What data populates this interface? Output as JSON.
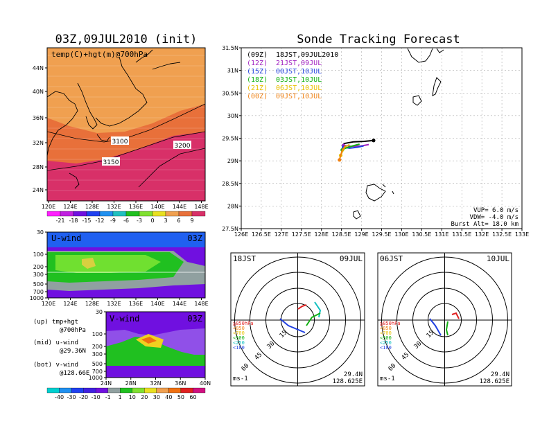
{
  "left_title": "03Z,09JUL2010 (init)",
  "right_title": "Sonde Tracking Forecast",
  "map_panel": {
    "label": "temp(C)+hgt(m)@700hPa",
    "lat_ticks": [
      "44N",
      "40N",
      "36N",
      "32N",
      "28N",
      "24N"
    ],
    "lon_ticks": [
      "120E",
      "124E",
      "128E",
      "132E",
      "136E",
      "140E",
      "144E",
      "148E"
    ],
    "contours": [
      "3100",
      "3150",
      "3200"
    ],
    "colors": {
      "warm": "#f0a050",
      "mid": "#e8703a",
      "hot": "#d83068"
    }
  },
  "temp_colorbar": {
    "labels": [
      "-21",
      "-18",
      "-15",
      "-12",
      "-9",
      "-6",
      "-3",
      "0",
      "3",
      "6",
      "9"
    ]
  },
  "uwind_panel": {
    "label": "U-wind",
    "time": "03Z",
    "p_ticks": [
      "30",
      "100",
      "200",
      "300",
      "500",
      "700",
      "1000"
    ],
    "lon_ticks": [
      "120E",
      "124E",
      "128E",
      "132E",
      "136E",
      "140E",
      "144E",
      "148E"
    ]
  },
  "vwind_panel": {
    "label": "V-wind",
    "time": "03Z",
    "p_ticks": [
      "30",
      "100",
      "200",
      "300",
      "500",
      "700",
      "1000"
    ],
    "lat_ticks": [
      "24N",
      "28N",
      "32N",
      "36N",
      "40N"
    ]
  },
  "wind_colorbar": {
    "labels": [
      "-40",
      "-30",
      "-20",
      "-10",
      "-1",
      "1",
      "10",
      "20",
      "30",
      "40",
      "50",
      "60"
    ]
  },
  "legend_notes": [
    {
      "head": "(up) tmp+hgt",
      "sub": "@700hPa"
    },
    {
      "head": "(mid) u-wind",
      "sub": "@29.36N"
    },
    {
      "head": "(bot) v-wind",
      "sub": "@128.66E"
    }
  ],
  "tracking_panel": {
    "lat_ticks": [
      "31.5N",
      "31N",
      "30.5N",
      "30N",
      "29.5N",
      "29N",
      "28.5N",
      "28N",
      "27.5N"
    ],
    "lon_ticks": [
      "126E",
      "126.5E",
      "127E",
      "127.5E",
      "128E",
      "128.5E",
      "129E",
      "129.5E",
      "130E",
      "130.5E",
      "131E",
      "131.5E",
      "132E",
      "132.5E",
      "133E"
    ],
    "legend": [
      {
        "code": "(09Z)",
        "time": "18JST,09JUL2010",
        "color": "#000000"
      },
      {
        "code": "(12Z)",
        "time": "21JST,09JUL",
        "color": "#a020c0"
      },
      {
        "code": "(15Z)",
        "time": "00JST,10JUL",
        "color": "#2040e0"
      },
      {
        "code": "(18Z)",
        "time": "03JST,10JUL",
        "color": "#10b010"
      },
      {
        "code": "(21Z)",
        "time": "06JST,10JUL",
        "color": "#e8c000"
      },
      {
        "code": "(00Z)",
        "time": "09JST,10JUL",
        "color": "#f08010"
      }
    ],
    "params": [
      "VUP=  6.0 m/s",
      "VDW= -4.0 m/s",
      "Burst Alt= 18.0 km"
    ]
  },
  "hodographs": [
    {
      "time_label": "18JST",
      "date_label": "09JUL",
      "lat": "29.4N",
      "lon": "128.625E",
      "unit": "ms-1",
      "rings": [
        "15",
        "30",
        "45",
        "60"
      ]
    },
    {
      "time_label": "06JST",
      "date_label": "10JUL",
      "lat": "29.4N",
      "lon": "128.625E",
      "unit": "ms-1",
      "rings": [
        "15",
        "30",
        "45",
        "60"
      ]
    }
  ],
  "hodo_legend": [
    {
      "label": "≧850hPa",
      "color": "#e02020"
    },
    {
      "label": "<850",
      "color": "#f08010"
    },
    {
      "label": "<700",
      "color": "#e8c000"
    },
    {
      "label": "<500",
      "color": "#10b010"
    },
    {
      "label": "<250",
      "color": "#10c0c0"
    },
    {
      "label": "<100",
      "color": "#2040e0"
    }
  ],
  "chart_data": {
    "type": "line",
    "title": "Sonde Tracking Forecast",
    "xlim": [
      126,
      133
    ],
    "ylim": [
      27.5,
      31.5
    ],
    "series": [
      {
        "name": "(09Z)",
        "points": [
          [
            128.55,
            29.38
          ],
          [
            128.8,
            29.42
          ],
          [
            129.05,
            29.43
          ],
          [
            129.3,
            29.45
          ]
        ]
      },
      {
        "name": "(12Z)",
        "points": [
          [
            128.55,
            29.34
          ],
          [
            128.75,
            29.32
          ],
          [
            129.0,
            29.33
          ],
          [
            129.18,
            29.36
          ]
        ]
      },
      {
        "name": "(15Z)",
        "points": [
          [
            128.55,
            29.3
          ],
          [
            128.7,
            29.28
          ],
          [
            128.9,
            29.3
          ],
          [
            129.05,
            29.33
          ]
        ]
      },
      {
        "name": "(18Z)",
        "points": [
          [
            128.52,
            29.24
          ],
          [
            128.6,
            29.28
          ],
          [
            128.78,
            29.33
          ],
          [
            128.95,
            29.37
          ]
        ]
      },
      {
        "name": "(21Z)",
        "points": [
          [
            128.48,
            29.12
          ],
          [
            128.52,
            29.2
          ],
          [
            128.58,
            29.3
          ],
          [
            128.7,
            29.36
          ]
        ]
      },
      {
        "name": "(00Z)",
        "points": [
          [
            128.45,
            29.02
          ],
          [
            128.48,
            29.12
          ],
          [
            128.52,
            29.24
          ],
          [
            128.6,
            29.34
          ]
        ]
      }
    ]
  }
}
